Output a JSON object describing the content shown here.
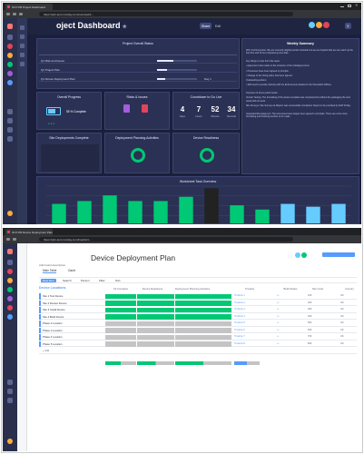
{
  "colors": {
    "accent": "#579bfc",
    "green": "#00c875",
    "teal": "#00b8d4",
    "lightblue": "#66ccff",
    "red": "#e2445c",
    "grey": "#c4c4c4",
    "dark_bg": "#1b1f3b"
  },
  "top": {
    "tab_title": "3CX PM Project Dashboard",
    "url": "https://pdx-test.monday.com/overview/1...",
    "title": "oject Dashboard",
    "header_buttons": {
      "share": "Share",
      "edit": "Edit"
    },
    "project_status": {
      "title": "Project Overall Status",
      "rows": [
        {
          "label": "Q1 Risk and Issues",
          "progress": 0.4,
          "value": ""
        },
        {
          "label": "Q1 Project Plan",
          "progress": 0.25,
          "value": ""
        },
        {
          "label": "Q1 Device Deployment Plan",
          "progress": 0.2,
          "value": "Day 1"
        }
      ]
    },
    "overall_progress": {
      "title": "Overall Progress",
      "value": "55 % Complete"
    },
    "risks_issues": {
      "title": "Risks & Issues"
    },
    "countdown": {
      "title": "Countdown to Go Live",
      "values": [
        "4",
        "7",
        "52",
        "34"
      ],
      "units": [
        "Days",
        "Hours",
        "Minutes",
        "Seconds"
      ]
    },
    "small_widgets": [
      "Site Deployments Complete",
      "Deployment Planning Activities",
      "Device Readiness"
    ],
    "summary": {
      "title": "Weekly Summary",
      "paragraphs": [
        "W/C 2nd November: We are currently slightly behind schedule but we are hopeful that we can catch up the lost time and hit our proposed go-live date.",
        "Key things to note from this week:",
        "• Agreement was made on the structure of the Catalogue Items.",
        "• Processes have been agreed in principle.",
        "• Change to the hiring policy has been agreed.",
        "Outstanding actions:",
        "• Still need to provide Velocity with the Enforcement details for the Shoreditch Offices.",
        "Overview of focus points below:",
        "Vendor Testing: The formatting of the device template was completed but without the packaging the item would still not work.",
        "Site Surveys: Site Surveys at Mayton was successfully completed. Report to be provided by EUP Friday.",
        "Integration/Development: The processes have largely been agreed in principle. There are a few more formatting and finishing touches to be made."
      ]
    },
    "chart": {
      "title": "Worksheet Task Overview"
    }
  },
  "chart_data": {
    "type": "bar",
    "title": "Worksheet Task Overview",
    "categories": [
      "A",
      "B",
      "C",
      "D",
      "E",
      "F",
      "G",
      "H",
      "I",
      "J",
      "K",
      "L"
    ],
    "values": [
      30,
      34,
      42,
      34,
      34,
      40,
      52,
      28,
      22,
      30,
      26,
      30
    ],
    "colors": [
      "#00c875",
      "#00c875",
      "#00c875",
      "#00c875",
      "#00c875",
      "#00c875",
      "#222222",
      "#00c875",
      "#00c875",
      "#66ccff",
      "#66ccff",
      "#66ccff"
    ],
    "data_labels": [
      "",
      "",
      "",
      "",
      "",
      "",
      "",
      "",
      "",
      "",
      "",
      ""
    ],
    "ylim": [
      0,
      55
    ]
  },
  "bottom": {
    "tab_title": "3CX PM Device Deployment Plan",
    "url": "https://pdx-test.monday.com/boards/1...",
    "title": "Device Deployment Plan",
    "subtitle": "Add board description",
    "views": [
      "Main Table",
      "Gantt"
    ],
    "toolbar": [
      "New Item",
      "Search",
      "Person",
      "Filter",
      "Sort"
    ],
    "group_title": "Device Locations",
    "columns": [
      "Kit Complete",
      "Device Readiness",
      "Deployment Planning Activities",
      "Timeline",
      "Build Status",
      "Site Code",
      "Country"
    ],
    "rows": [
      {
        "name": "Site 1 Test Device",
        "status": [
          "green",
          "green",
          "green"
        ],
        "timeline": "Timeline 1",
        "code": "100",
        "country": "UK"
      },
      {
        "name": "Site 2 Review Device",
        "status": [
          "green",
          "green",
          "green"
        ],
        "timeline": "Timeline 2",
        "code": "200",
        "country": "UK"
      },
      {
        "name": "Site 3 Install Device",
        "status": [
          "green",
          "green",
          "green"
        ],
        "timeline": "Timeline 3",
        "code": "300",
        "country": "UK"
      },
      {
        "name": "Site 4 Build Device",
        "status": [
          "green",
          "green",
          "green"
        ],
        "timeline": "Timeline 4",
        "code": "400",
        "country": "UK"
      },
      {
        "name": "Phase 2 Location",
        "status": [
          "grey",
          "grey",
          "grey"
        ],
        "timeline": "Timeline 5",
        "code": "500",
        "country": "UK"
      },
      {
        "name": "Phase 3 Location",
        "status": [
          "grey",
          "grey",
          "grey"
        ],
        "timeline": "Timeline 6",
        "code": "600",
        "country": "UK"
      },
      {
        "name": "Phase 4 Location",
        "status": [
          "grey",
          "grey",
          "grey"
        ],
        "timeline": "Timeline 7",
        "code": "700",
        "country": "UK"
      },
      {
        "name": "Phase 5 Location",
        "status": [
          "grey",
          "grey",
          "grey"
        ],
        "timeline": "Timeline 8",
        "code": "800",
        "country": "UK"
      }
    ],
    "add_item": "+ Add"
  }
}
